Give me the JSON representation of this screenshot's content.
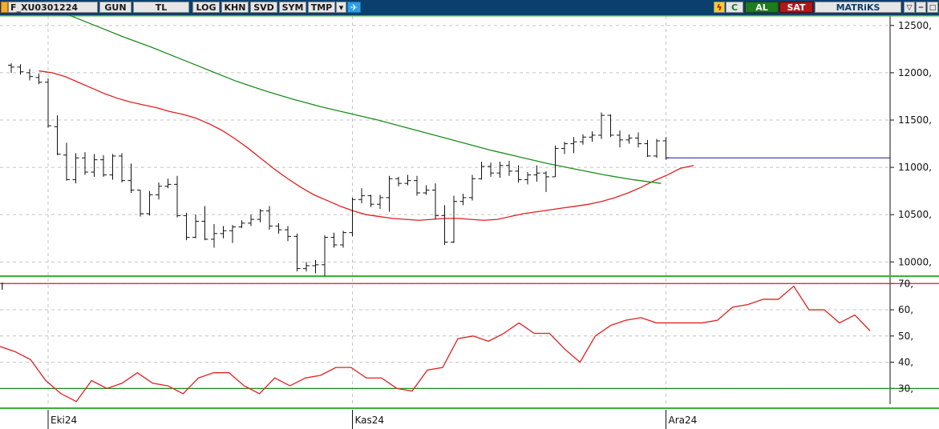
{
  "toolbar": {
    "symbol": "F_XU0301224",
    "buttons": [
      "GUN",
      "TL",
      "LOG",
      "KHN",
      "SVD",
      "SYM",
      "TMP"
    ],
    "c_label": "C",
    "buy_label": "AL",
    "sell_label": "SAT",
    "brand": "MATRiKS",
    "colors": {
      "bar": "#0b3f6e",
      "buy": "#1e7b1e",
      "sell": "#b01818"
    }
  },
  "chart_data": [
    {
      "type": "ohlc",
      "ylim": [
        9850,
        12600
      ],
      "yticks": [
        10000,
        10500,
        11000,
        11500,
        12000,
        12500
      ],
      "ytick_labels": [
        "10000,",
        "10500,",
        "11000,",
        "11500,",
        "12000,",
        "12500,"
      ],
      "xticks": [
        {
          "label": "Eki24",
          "index": 4
        },
        {
          "label": "Kas24",
          "index": 37
        },
        {
          "label": "Ara24",
          "index": 71
        }
      ],
      "candles": [
        [
          12080,
          12100,
          12000,
          12060
        ],
        [
          12060,
          12090,
          11980,
          12010
        ],
        [
          12000,
          12040,
          11920,
          11960
        ],
        [
          11950,
          11990,
          11880,
          11900
        ],
        [
          11900,
          11940,
          11420,
          11440
        ],
        [
          11430,
          11550,
          11130,
          11140
        ],
        [
          11130,
          11260,
          10860,
          10870
        ],
        [
          10870,
          11150,
          10830,
          11100
        ],
        [
          11100,
          11160,
          10920,
          10950
        ],
        [
          10950,
          11140,
          10900,
          11080
        ],
        [
          11080,
          11130,
          10900,
          10920
        ],
        [
          10920,
          11140,
          10870,
          11120
        ],
        [
          11120,
          11150,
          10840,
          10860
        ],
        [
          10860,
          11040,
          10730,
          10760
        ],
        [
          10760,
          10760,
          10480,
          10510
        ],
        [
          10510,
          10750,
          10490,
          10710
        ],
        [
          10710,
          10840,
          10660,
          10800
        ],
        [
          10800,
          10880,
          10780,
          10820
        ],
        [
          10820,
          10910,
          10470,
          10490
        ],
        [
          10490,
          10520,
          10230,
          10260
        ],
        [
          10260,
          10500,
          10250,
          10430
        ],
        [
          10430,
          10590,
          10230,
          10240
        ],
        [
          10240,
          10400,
          10150,
          10300
        ],
        [
          10300,
          10380,
          10250,
          10330
        ],
        [
          10330,
          10390,
          10200,
          10370
        ],
        [
          10370,
          10440,
          10360,
          10410
        ],
        [
          10410,
          10500,
          10380,
          10450
        ],
        [
          10450,
          10560,
          10420,
          10540
        ],
        [
          10540,
          10590,
          10340,
          10380
        ],
        [
          10380,
          10410,
          10300,
          10340
        ],
        [
          10340,
          10380,
          10220,
          10270
        ],
        [
          10270,
          10300,
          9900,
          9930
        ],
        [
          9930,
          10000,
          9900,
          9960
        ],
        [
          9960,
          10020,
          9880,
          9970
        ],
        [
          9970,
          10280,
          9850,
          10260
        ],
        [
          10260,
          10310,
          10150,
          10180
        ],
        [
          10180,
          10330,
          10150,
          10310
        ],
        [
          10310,
          10680,
          10270,
          10660
        ],
        [
          10660,
          10780,
          10620,
          10700
        ],
        [
          10700,
          10710,
          10580,
          10610
        ],
        [
          10610,
          10710,
          10560,
          10680
        ],
        [
          10680,
          10910,
          10530,
          10880
        ],
        [
          10880,
          10900,
          10800,
          10830
        ],
        [
          10830,
          10920,
          10810,
          10860
        ],
        [
          10860,
          10910,
          10700,
          10730
        ],
        [
          10730,
          10810,
          10710,
          10760
        ],
        [
          10760,
          10830,
          10450,
          10490
        ],
        [
          10490,
          10600,
          10180,
          10210
        ],
        [
          10210,
          10700,
          10200,
          10640
        ],
        [
          10640,
          10720,
          10600,
          10680
        ],
        [
          10680,
          10920,
          10650,
          10880
        ],
        [
          10880,
          11060,
          10870,
          11010
        ],
        [
          11010,
          11050,
          10900,
          10940
        ],
        [
          10940,
          11060,
          10890,
          11020
        ],
        [
          11020,
          11070,
          10910,
          10960
        ],
        [
          10960,
          11020,
          10840,
          10870
        ],
        [
          10870,
          10950,
          10820,
          10920
        ],
        [
          10920,
          11020,
          10850,
          10940
        ],
        [
          10940,
          10960,
          10740,
          10900
        ],
        [
          10900,
          11230,
          10900,
          11200
        ],
        [
          11200,
          11270,
          11140,
          11250
        ],
        [
          11250,
          11320,
          11150,
          11270
        ],
        [
          11270,
          11350,
          11240,
          11320
        ],
        [
          11320,
          11380,
          11270,
          11340
        ],
        [
          11340,
          11580,
          11300,
          11550
        ],
        [
          11550,
          11560,
          11320,
          11340
        ],
        [
          11340,
          11390,
          11210,
          11290
        ],
        [
          11290,
          11350,
          11250,
          11310
        ],
        [
          11310,
          11370,
          11210,
          11250
        ],
        [
          11250,
          11290,
          11110,
          11120
        ],
        [
          11120,
          11300,
          11100,
          11280
        ],
        [
          11280,
          11320,
          11080,
          11100
        ]
      ],
      "series": [
        {
          "values": [
            12020,
            12000,
            11960,
            11900,
            11840,
            11780,
            11730,
            11690,
            11660,
            11630,
            11590,
            11560,
            11520,
            11460,
            11390,
            11300,
            11200,
            11090,
            10980,
            10880,
            10790,
            10710,
            10650,
            10590,
            10540,
            10500,
            10480,
            10460,
            10450,
            10440,
            10450,
            10460,
            10460,
            10450,
            10440,
            10450,
            10480,
            10510,
            10530,
            10550,
            10570,
            10590,
            10610,
            10640,
            10680,
            10730,
            10790,
            10860,
            10920,
            10990,
            11020
          ],
          "color": "#e02020",
          "x_offset": 3,
          "step": 1.42
        },
        {
          "values": [
            12620,
            12500,
            12380,
            12270,
            12150,
            12030,
            11910,
            11810,
            11720,
            11640,
            11570,
            11500,
            11420,
            11340,
            11260,
            11180,
            11110,
            11040,
            10980,
            10920,
            10870,
            10830
          ],
          "color": "#1e8c1e",
          "x_offset": 6,
          "step": 3.07
        }
      ]
    },
    {
      "type": "line",
      "ylim": [
        24,
        71
      ],
      "yticks": [
        30,
        40,
        50,
        60,
        70
      ],
      "ytick_labels": [
        "30,",
        "40,",
        "50,",
        "60,",
        "70,"
      ],
      "title": "I",
      "hlines": [
        {
          "value": 70,
          "color": "#d02020"
        },
        {
          "value": 30,
          "color": "#1e8c1e"
        }
      ],
      "series": [
        {
          "values": [
            46,
            44,
            41,
            33,
            28,
            25,
            33,
            30,
            32,
            36,
            32,
            31,
            28,
            34,
            36,
            36,
            31,
            28,
            34,
            31,
            34,
            35,
            38,
            38,
            34,
            34,
            30,
            29,
            37,
            38,
            49,
            50,
            48,
            51,
            55,
            51,
            51,
            45,
            40,
            50,
            54,
            56,
            57,
            55,
            55,
            55,
            55,
            56,
            61,
            62,
            64,
            64,
            69,
            60,
            60,
            55,
            58,
            52
          ],
          "color": "#e02020"
        }
      ]
    }
  ]
}
